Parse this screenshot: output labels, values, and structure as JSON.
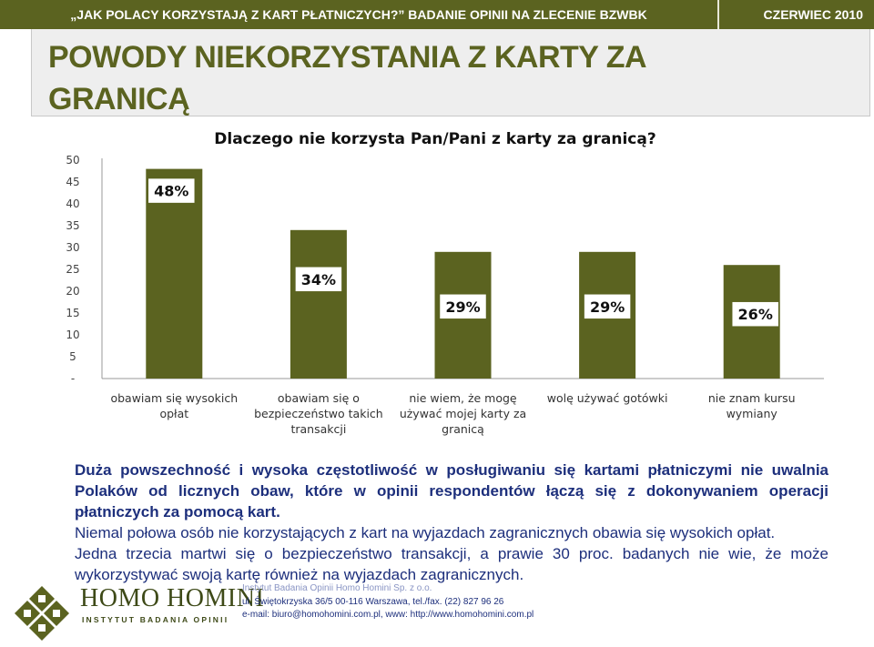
{
  "header": {
    "survey": "„JAK POLACY KORZYSTAJĄ Z KART PŁATNICZYCH?” BADANIE OPINII NA ZLECENIE BZWBK",
    "date": "CZERWIEC 2010"
  },
  "slide_title": "POWODY NIEKORZYSTANIA Z KARTY ZA GRANICĄ",
  "chart_data": {
    "type": "bar",
    "title": "Dlaczego nie korzysta Pan/Pani z karty za granicą?",
    "categories": [
      [
        "obawiam się wysokich",
        "opłat"
      ],
      [
        "obawiam się o",
        "bezpieczeństwo takich",
        "transakcji"
      ],
      [
        "nie wiem, że mogę",
        "używać mojej karty za",
        "granicą"
      ],
      [
        "wolę używać gotówki"
      ],
      [
        "nie znam kursu",
        "wymiany"
      ]
    ],
    "values": [
      48,
      34,
      29,
      29,
      26
    ],
    "data_labels": [
      "48%",
      "34%",
      "29%",
      "29%",
      "26%"
    ],
    "ylim": [
      0,
      50
    ],
    "y_ticks": [
      "-",
      "5",
      "10",
      "15",
      "20",
      "25",
      "30",
      "35",
      "40",
      "45",
      "50"
    ],
    "grid": false,
    "colors": {
      "bar": "#5b6320",
      "label_box_border": "#5b6320"
    }
  },
  "body": {
    "summary": "Duża powszechność i wysoka częstotliwość w posługiwaniu się kartami płatniczymi nie uwalnia Polaków od licznych obaw, które w opinii respondentów łączą się z dokonywaniem operacji płatniczych za pomocą kart.",
    "point1": "Niemal połowa osób nie korzystających z kart na wyjazdach zagranicznych obawia się wysokich opłat.",
    "point2": "Jedna trzecia martwi się o bezpieczeństwo transakcji, a prawie 30 proc. badanych nie wie, że może wykorzystywać swoją kartę również na wyjazdach zagranicznych."
  },
  "footer": {
    "logo_name": "HOMO HOMINI",
    "logo_sub": "INSTYTUT BADANIA OPINII",
    "company": "Instytut Badania Opinii Homo Homini Sp. z o.o.",
    "address": "ul. Świętokrzyska 36/5 00-116 Warszawa, tel./fax. (22) 827 96 26",
    "contact": "e-mail: biuro@homohomini.com.pl, www: http://www.homohomini.com.pl"
  },
  "colors": {
    "brand_green": "#5b6320",
    "text_blue": "#1d2f7c"
  }
}
